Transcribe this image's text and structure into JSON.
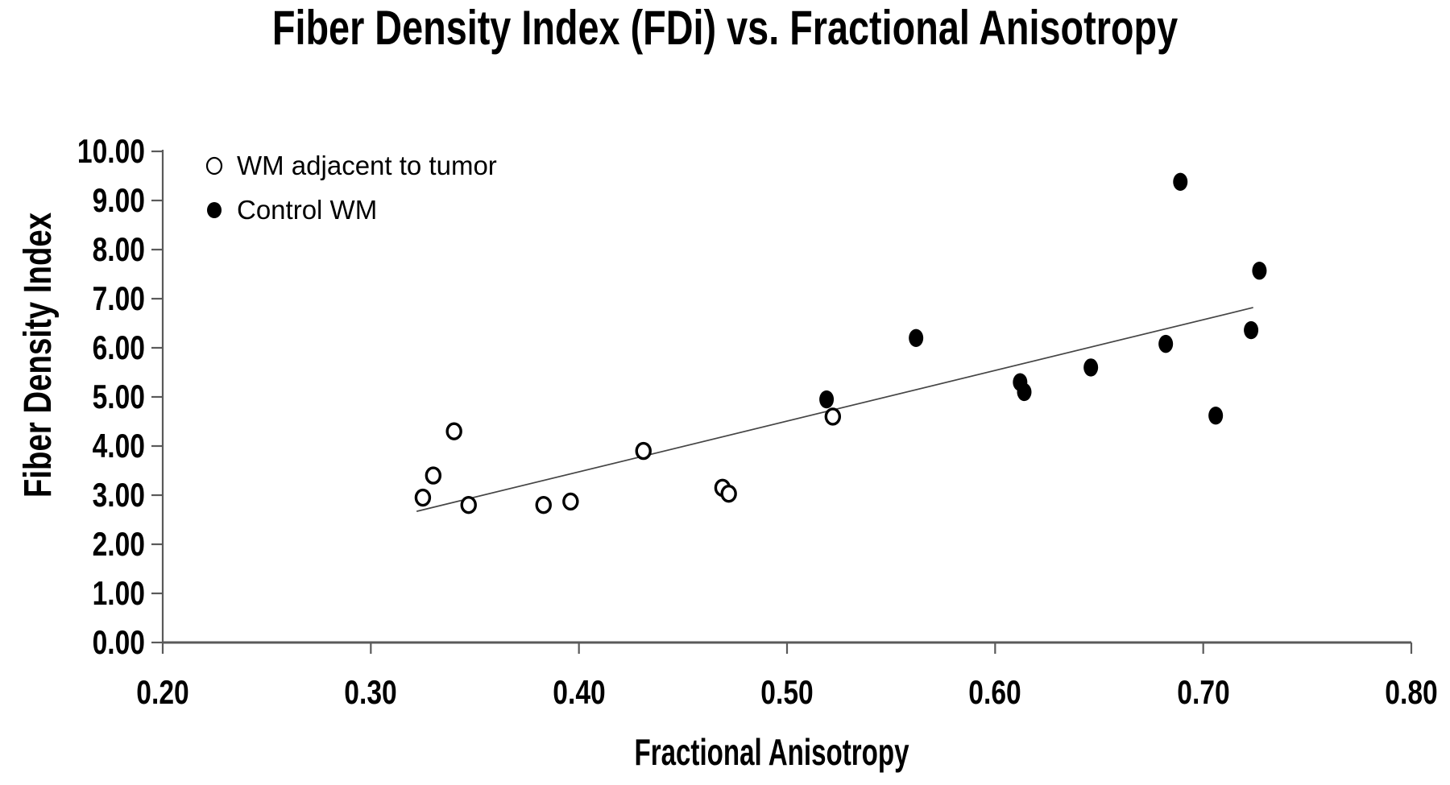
{
  "chart_data": {
    "type": "scatter",
    "title": "Fiber Density Index (FDi) vs. Fractional Anisotropy",
    "xlabel": "Fractional Anisotropy",
    "ylabel": "Fiber Density Index",
    "xlim": [
      0.2,
      0.8
    ],
    "ylim": [
      0.0,
      10.0
    ],
    "grid": false,
    "legend_position": "inside-top-left",
    "x_ticks": [
      {
        "v": 0.2,
        "label": "0.20"
      },
      {
        "v": 0.3,
        "label": "0.30"
      },
      {
        "v": 0.4,
        "label": "0.40"
      },
      {
        "v": 0.5,
        "label": "0.50"
      },
      {
        "v": 0.6,
        "label": "0.60"
      },
      {
        "v": 0.7,
        "label": "0.70"
      },
      {
        "v": 0.8,
        "label": "0.80"
      }
    ],
    "y_ticks": [
      {
        "v": 0,
        "label": "0.00"
      },
      {
        "v": 1,
        "label": "1.00"
      },
      {
        "v": 2,
        "label": "2.00"
      },
      {
        "v": 3,
        "label": "3.00"
      },
      {
        "v": 4,
        "label": "4.00"
      },
      {
        "v": 5,
        "label": "5.00"
      },
      {
        "v": 6,
        "label": "6.00"
      },
      {
        "v": 7,
        "label": "7.00"
      },
      {
        "v": 8,
        "label": "8.00"
      },
      {
        "v": 9,
        "label": "9.00"
      },
      {
        "v": 10,
        "label": "10.00"
      }
    ],
    "series": [
      {
        "name": "WM adjacent to tumor",
        "marker": "open-circle",
        "points": [
          [
            0.325,
            2.95
          ],
          [
            0.33,
            3.4
          ],
          [
            0.34,
            4.3
          ],
          [
            0.347,
            2.8
          ],
          [
            0.383,
            2.8
          ],
          [
            0.396,
            2.87
          ],
          [
            0.431,
            3.9
          ],
          [
            0.469,
            3.15
          ],
          [
            0.472,
            3.03
          ],
          [
            0.522,
            4.6
          ]
        ]
      },
      {
        "name": "Control WM",
        "marker": "filled-circle",
        "points": [
          [
            0.519,
            4.95
          ],
          [
            0.562,
            6.2
          ],
          [
            0.612,
            5.3
          ],
          [
            0.614,
            5.1
          ],
          [
            0.646,
            5.6
          ],
          [
            0.682,
            6.08
          ],
          [
            0.689,
            9.38
          ],
          [
            0.706,
            4.62
          ],
          [
            0.723,
            6.36
          ],
          [
            0.727,
            7.57
          ]
        ]
      }
    ],
    "trendline": {
      "x1": 0.322,
      "y1": 2.67,
      "x2": 0.724,
      "y2": 6.82
    }
  },
  "colors": {
    "marker": "#000000",
    "axis": "#5a5a5a",
    "trendline": "#454545",
    "background": "#ffffff",
    "text": "#000000"
  }
}
